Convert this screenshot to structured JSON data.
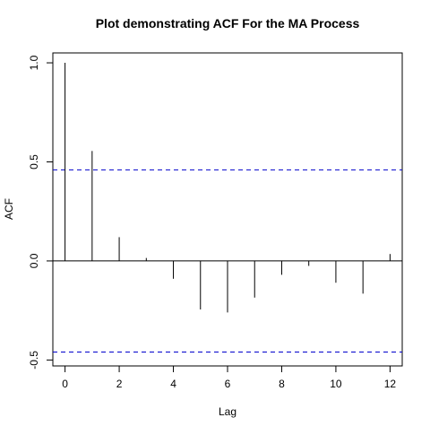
{
  "chart_data": {
    "type": "bar",
    "title": "Plot demonstrating ACF For the MA Process",
    "xlabel": "Lag",
    "ylabel": "ACF",
    "x": [
      0,
      1,
      2,
      3,
      4,
      5,
      6,
      7,
      8,
      9,
      10,
      11,
      12
    ],
    "values": [
      1.0,
      0.555,
      0.12,
      0.015,
      -0.09,
      -0.245,
      -0.26,
      -0.185,
      -0.07,
      -0.025,
      -0.11,
      -0.165,
      0.035
    ],
    "xlim": [
      -0.45,
      12.45
    ],
    "ylim": [
      -0.53,
      1.05
    ],
    "x_ticks": [
      0,
      2,
      4,
      6,
      8,
      10,
      12
    ],
    "x_tick_labels": [
      "0",
      "2",
      "4",
      "6",
      "8",
      "10",
      "12"
    ],
    "y_ticks": [
      -0.5,
      0.0,
      0.5,
      1.0
    ],
    "y_tick_labels": [
      "-0.5",
      "0.0",
      "0.5",
      "1.0"
    ],
    "confidence_bounds": [
      0.46,
      -0.46
    ],
    "zero_line": true,
    "grid": false,
    "colors": {
      "spikes": "#000000",
      "bounds": "#0000cc",
      "axes": "#000000"
    }
  }
}
